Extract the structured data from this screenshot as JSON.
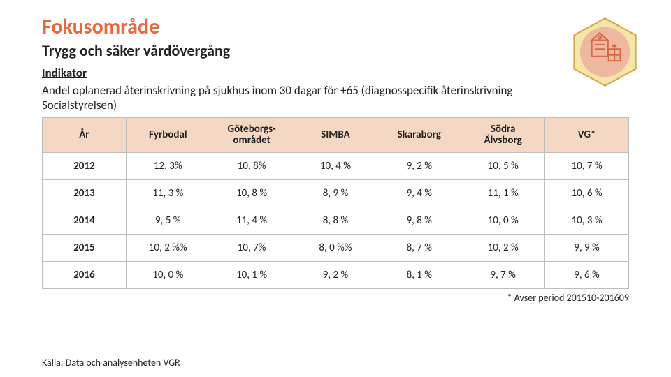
{
  "title": "Fokusområde",
  "subtitle": "Trygg och säker vårdövergång",
  "indikator_label": "Indikator",
  "description": "Andel oplanerad återinskrivning på sjukhus inom 30 dagar för +65 (diagnosspecifik återinskrivning Socialstyrelsen)",
  "footnote": "* Avser period 201510-201609",
  "source": "Källa: Data och analysenheten VGR",
  "badge": {
    "hex_fill": "#f6e5a8",
    "hex_stroke": "#d4a84a",
    "circle_fill": "#f0b8a0",
    "building_stroke": "#d46a4a"
  },
  "table": {
    "header_bg": "#f5d8c4",
    "border_color": "#bdbdbd",
    "columns": [
      "År",
      "Fyrbodal",
      "Göteborgs-\nområdet",
      "SIMBA",
      "Skaraborg",
      "Södra\nÄlvsborg",
      "VG*"
    ],
    "rows": [
      [
        "2012",
        "12, 3%",
        "10, 8%",
        "10, 4 %",
        "9, 2 %",
        "10, 5 %",
        "10, 7 %"
      ],
      [
        "2013",
        "11, 3 %",
        "10, 8 %",
        "8, 9 %",
        "9, 4 %",
        "11, 1 %",
        "10, 6 %"
      ],
      [
        "2014",
        "9, 5 %",
        "11, 4 %",
        "8, 8 %",
        "9, 8 %",
        "10, 0 %",
        "10, 3 %"
      ],
      [
        "2015",
        "10, 2 %%",
        "10, 7%",
        "8, 0 %%",
        "8, 7 %",
        "10, 2 %",
        "9, 9 %"
      ],
      [
        "2016",
        "10, 0 %",
        "10, 1 %",
        "9, 2 %",
        "8, 1 %",
        "9, 7 %",
        "9, 6 %"
      ]
    ]
  }
}
